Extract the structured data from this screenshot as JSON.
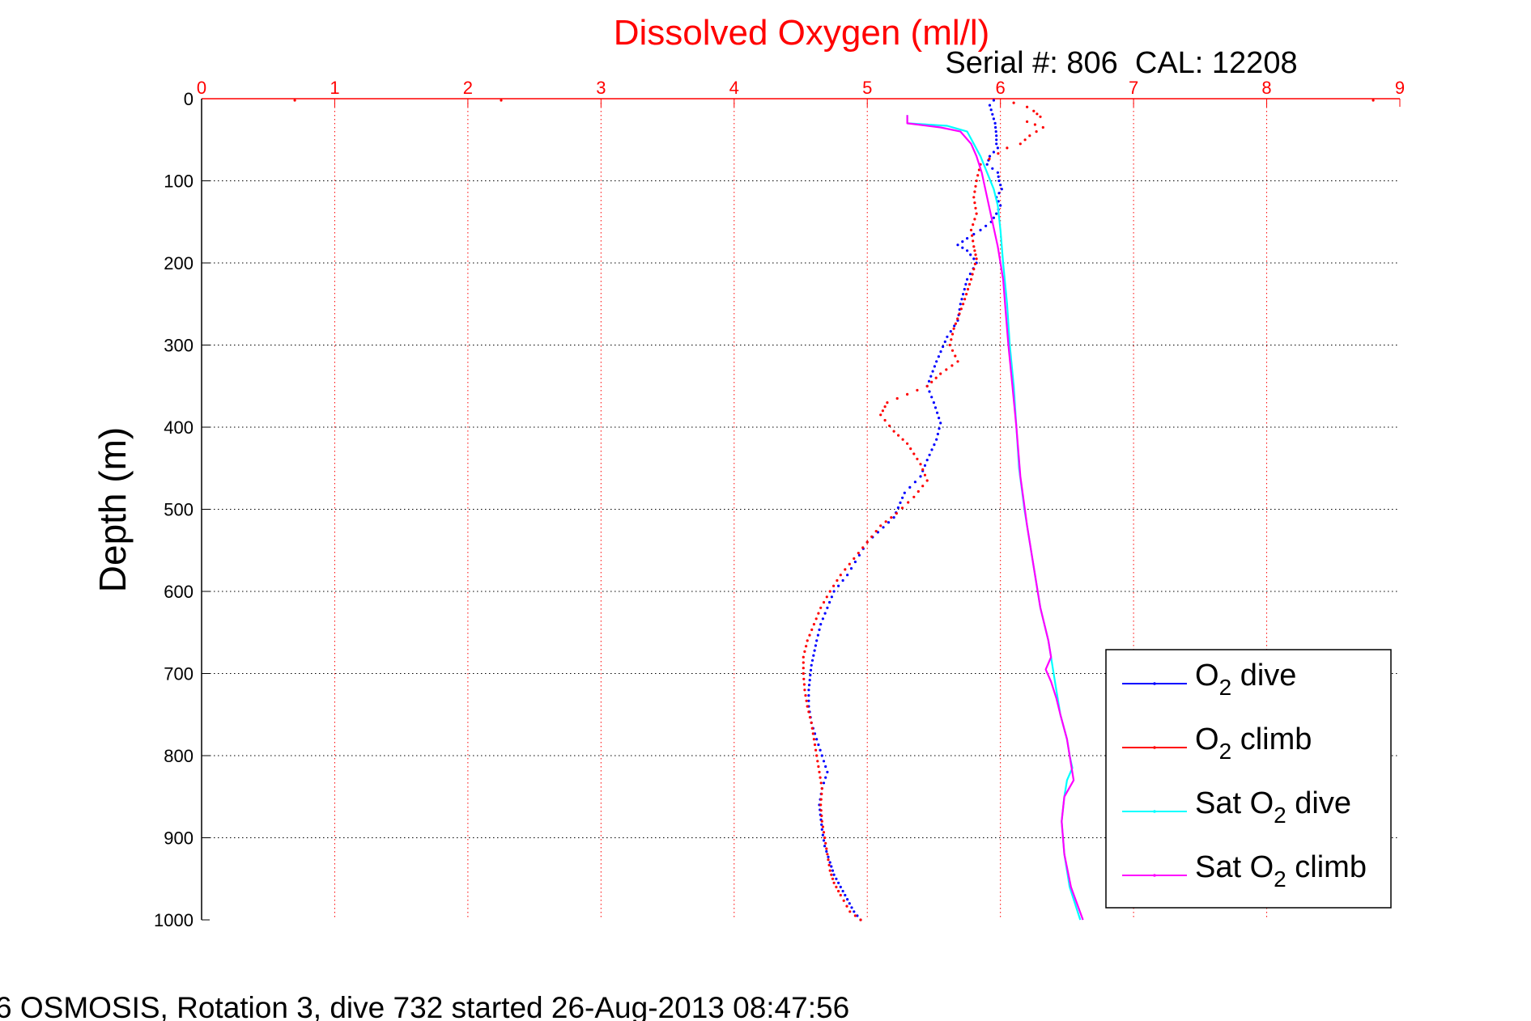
{
  "figure": {
    "subtitle": "Serial #: 806  CAL: 12208",
    "footer": "6 OSMOSIS, Rotation 3, dive 732 started 26-Aug-2013 08:47:56"
  },
  "chart_data": {
    "type": "scatter",
    "title": "Dissolved Oxygen (ml/l)",
    "xlabel": "",
    "ylabel": "Depth (m)",
    "xlim": [
      0,
      9
    ],
    "ylim": [
      0,
      1000
    ],
    "y_reversed": true,
    "x_axis_position": "top",
    "x_ticks": [
      0,
      1,
      2,
      3,
      4,
      5,
      6,
      7,
      8,
      9
    ],
    "y_ticks": [
      0,
      100,
      200,
      300,
      400,
      500,
      600,
      700,
      800,
      900,
      1000
    ],
    "grid": true,
    "legend_position": "bottom-right",
    "colors": {
      "title": "#ff0000",
      "x_ticks": "#ff0000",
      "axis": "#ff0000",
      "grid": "#000000"
    },
    "series": [
      {
        "name": "O2 dive",
        "legend_main": "O",
        "legend_sub": "2",
        "legend_rest": " dive",
        "color": "#0000ff",
        "style": "dots",
        "points": [
          [
            5.95,
            2
          ],
          [
            5.92,
            8
          ],
          [
            5.96,
            30
          ],
          [
            5.97,
            45
          ],
          [
            5.97,
            55
          ],
          [
            5.98,
            60
          ],
          [
            5.92,
            70
          ],
          [
            5.9,
            80
          ],
          [
            5.98,
            90
          ],
          [
            5.99,
            100
          ],
          [
            6.01,
            110
          ],
          [
            5.97,
            120
          ],
          [
            6.0,
            130
          ],
          [
            5.97,
            140
          ],
          [
            5.93,
            150
          ],
          [
            5.85,
            160
          ],
          [
            5.75,
            170
          ],
          [
            5.68,
            178
          ],
          [
            5.75,
            185
          ],
          [
            5.8,
            195
          ],
          [
            5.82,
            200
          ],
          [
            5.75,
            220
          ],
          [
            5.7,
            250
          ],
          [
            5.68,
            270
          ],
          [
            5.6,
            290
          ],
          [
            5.52,
            320
          ],
          [
            5.45,
            350
          ],
          [
            5.5,
            370
          ],
          [
            5.55,
            395
          ],
          [
            5.52,
            415
          ],
          [
            5.45,
            440
          ],
          [
            5.4,
            460
          ],
          [
            5.28,
            480
          ],
          [
            5.2,
            510
          ],
          [
            5.0,
            540
          ],
          [
            4.85,
            580
          ],
          [
            4.75,
            600
          ],
          [
            4.7,
            620
          ],
          [
            4.65,
            640
          ],
          [
            4.62,
            660
          ],
          [
            4.58,
            690
          ],
          [
            4.56,
            720
          ],
          [
            4.56,
            740
          ],
          [
            4.58,
            760
          ],
          [
            4.62,
            780
          ],
          [
            4.66,
            800
          ],
          [
            4.7,
            820
          ],
          [
            4.66,
            840
          ],
          [
            4.64,
            860
          ],
          [
            4.66,
            890
          ],
          [
            4.68,
            910
          ],
          [
            4.72,
            930
          ],
          [
            4.75,
            945
          ],
          [
            4.8,
            960
          ],
          [
            4.85,
            975
          ],
          [
            4.9,
            990
          ],
          [
            4.95,
            1000
          ]
        ]
      },
      {
        "name": "O2 climb",
        "legend_main": "O",
        "legend_sub": "2",
        "legend_rest": " climb",
        "color": "#ff0000",
        "style": "dots",
        "points": [
          [
            0.7,
            2
          ],
          [
            2.25,
            2
          ],
          [
            8.8,
            2
          ],
          [
            6.1,
            5
          ],
          [
            6.2,
            10
          ],
          [
            6.25,
            15
          ],
          [
            6.3,
            22
          ],
          [
            6.2,
            28
          ],
          [
            6.32,
            35
          ],
          [
            6.22,
            45
          ],
          [
            6.15,
            55
          ],
          [
            6.05,
            60
          ],
          [
            5.85,
            80
          ],
          [
            5.82,
            100
          ],
          [
            5.8,
            120
          ],
          [
            5.82,
            140
          ],
          [
            5.78,
            160
          ],
          [
            5.8,
            180
          ],
          [
            5.82,
            195
          ],
          [
            5.78,
            220
          ],
          [
            5.72,
            250
          ],
          [
            5.65,
            280
          ],
          [
            5.62,
            300
          ],
          [
            5.68,
            320
          ],
          [
            5.55,
            335
          ],
          [
            5.45,
            350
          ],
          [
            5.3,
            360
          ],
          [
            5.15,
            370
          ],
          [
            5.1,
            385
          ],
          [
            5.2,
            405
          ],
          [
            5.3,
            420
          ],
          [
            5.4,
            445
          ],
          [
            5.45,
            465
          ],
          [
            5.35,
            485
          ],
          [
            5.22,
            505
          ],
          [
            5.1,
            520
          ],
          [
            5.0,
            540
          ],
          [
            4.9,
            560
          ],
          [
            4.8,
            580
          ],
          [
            4.72,
            600
          ],
          [
            4.65,
            620
          ],
          [
            4.6,
            640
          ],
          [
            4.55,
            660
          ],
          [
            4.52,
            680
          ],
          [
            4.52,
            700
          ],
          [
            4.53,
            720
          ],
          [
            4.55,
            740
          ],
          [
            4.58,
            760
          ],
          [
            4.6,
            780
          ],
          [
            4.62,
            800
          ],
          [
            4.64,
            820
          ],
          [
            4.66,
            840
          ],
          [
            4.65,
            860
          ],
          [
            4.66,
            880
          ],
          [
            4.68,
            900
          ],
          [
            4.7,
            920
          ],
          [
            4.72,
            940
          ],
          [
            4.75,
            955
          ],
          [
            4.8,
            970
          ],
          [
            4.87,
            990
          ],
          [
            4.95,
            1000
          ]
        ]
      },
      {
        "name": "Sat O2 dive",
        "legend_main": "Sat O",
        "legend_sub": "2",
        "legend_rest": " dive",
        "color": "#00ffff",
        "style": "line",
        "points": [
          [
            5.3,
            20
          ],
          [
            5.3,
            30
          ],
          [
            5.6,
            33
          ],
          [
            5.75,
            40
          ],
          [
            5.8,
            55
          ],
          [
            5.85,
            70
          ],
          [
            5.9,
            90
          ],
          [
            5.95,
            110
          ],
          [
            5.98,
            130
          ],
          [
            6.0,
            160
          ],
          [
            6.02,
            200
          ],
          [
            6.05,
            250
          ],
          [
            6.07,
            300
          ],
          [
            6.1,
            350
          ],
          [
            6.12,
            400
          ],
          [
            6.14,
            450
          ],
          [
            6.18,
            500
          ],
          [
            6.24,
            560
          ],
          [
            6.3,
            620
          ],
          [
            6.36,
            660
          ],
          [
            6.38,
            680
          ],
          [
            6.4,
            700
          ],
          [
            6.42,
            720
          ],
          [
            6.45,
            750
          ],
          [
            6.5,
            780
          ],
          [
            6.52,
            800
          ],
          [
            6.54,
            815
          ],
          [
            6.5,
            830
          ],
          [
            6.48,
            850
          ],
          [
            6.46,
            880
          ],
          [
            6.48,
            920
          ],
          [
            6.52,
            960
          ],
          [
            6.6,
            1000
          ]
        ]
      },
      {
        "name": "Sat O2 climb",
        "legend_main": "Sat O",
        "legend_sub": "2",
        "legend_rest": " climb",
        "color": "#ff00ff",
        "style": "line",
        "points": [
          [
            5.3,
            20
          ],
          [
            5.3,
            30
          ],
          [
            5.55,
            35
          ],
          [
            5.7,
            40
          ],
          [
            5.78,
            55
          ],
          [
            5.82,
            70
          ],
          [
            5.86,
            90
          ],
          [
            5.9,
            120
          ],
          [
            5.94,
            150
          ],
          [
            5.98,
            180
          ],
          [
            6.02,
            220
          ],
          [
            6.04,
            260
          ],
          [
            6.06,
            300
          ],
          [
            6.09,
            350
          ],
          [
            6.12,
            400
          ],
          [
            6.15,
            460
          ],
          [
            6.2,
            520
          ],
          [
            6.26,
            580
          ],
          [
            6.3,
            620
          ],
          [
            6.36,
            660
          ],
          [
            6.38,
            680
          ],
          [
            6.34,
            695
          ],
          [
            6.38,
            710
          ],
          [
            6.42,
            730
          ],
          [
            6.45,
            750
          ],
          [
            6.5,
            780
          ],
          [
            6.53,
            810
          ],
          [
            6.55,
            830
          ],
          [
            6.48,
            850
          ],
          [
            6.46,
            880
          ],
          [
            6.48,
            920
          ],
          [
            6.53,
            960
          ],
          [
            6.62,
            1000
          ]
        ]
      }
    ]
  }
}
